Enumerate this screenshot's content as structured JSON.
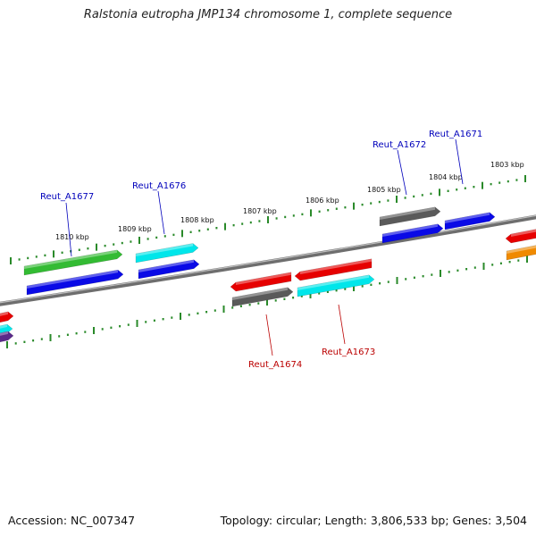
{
  "title": "Ralstonia eutropha JMP134 chromosome 1, complete sequence",
  "footer": {
    "accession": "Accession: NC_007347",
    "stats": "Topology: circular; Length: 3,806,533 bp; Genes: 3,504"
  },
  "colors": {
    "backbone": "#7a7a7a",
    "tick": "#2a8a2a",
    "forward_label": "#0000bb",
    "reverse_label": "#bb0000",
    "green": "#33bb33",
    "blue": "#0a0ae6",
    "cyan": "#00e6ea",
    "gray": "#5a5a5a",
    "red": "#e60000",
    "orange": "#f08a00",
    "purple": "#5a2a8a"
  },
  "kbp_labels": [
    "1810 kbp",
    "1809 kbp",
    "1808 kbp",
    "1807 kbp",
    "1806 kbp",
    "1805 kbp",
    "1804 kbp",
    "1803 kbp"
  ],
  "gene_labels": {
    "reut_a1677": "Reut_A1677",
    "reut_a1676": "Reut_A1676",
    "reut_a1672": "Reut_A1672",
    "reut_a1671": "Reut_A1671",
    "reut_a1674": "Reut_A1674",
    "reut_a1673": "Reut_A1673"
  }
}
